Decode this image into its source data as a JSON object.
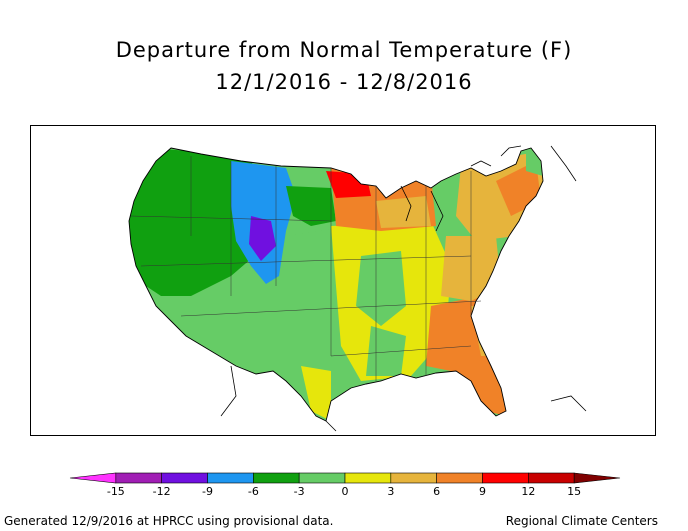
{
  "title": "Departure from Normal Temperature (F)",
  "subtitle": "12/1/2016 - 12/8/2016",
  "legend": {
    "ticks": [
      "-15",
      "-12",
      "-9",
      "-6",
      "-3",
      "0",
      "3",
      "6",
      "9",
      "12",
      "15"
    ],
    "colors": [
      "#ff33ff",
      "#a01eb4",
      "#7010e0",
      "#1e96f0",
      "#10a010",
      "#66cc66",
      "#e6e60c",
      "#e6b43c",
      "#f08228",
      "#ff0000",
      "#c80000",
      "#800000"
    ]
  },
  "footer_left": "Generated 12/9/2016 at HPRCC using provisional data.",
  "footer_right": "Regional Climate Centers"
}
